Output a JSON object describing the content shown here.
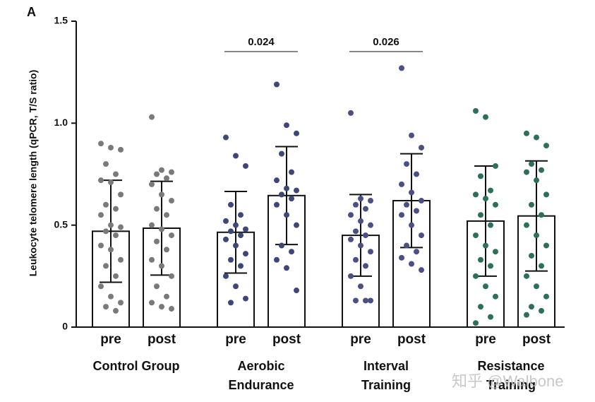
{
  "chart_data": {
    "type": "bar",
    "panel_label": "A",
    "y_label": "Leukocyte telomere length (qPCR, T/S ratio)",
    "ylim": [
      0,
      1.5
    ],
    "yticks": [
      0,
      0.5,
      {
        "value": 1,
        "label": "1.0"
      },
      1.5
    ],
    "groups": [
      {
        "name": "Control Group",
        "color": "#7a7a7a",
        "categories": [
          "pre",
          "post"
        ],
        "values": [
          0.47,
          0.485
        ],
        "errors": [
          0.25,
          0.23
        ],
        "points": [
          [
            0.9,
            0.88,
            0.87,
            0.8,
            0.75,
            0.72,
            0.71,
            0.65,
            0.6,
            0.58,
            0.55,
            0.5,
            0.49,
            0.47,
            0.45,
            0.4,
            0.38,
            0.33,
            0.3,
            0.25,
            0.2,
            0.15,
            0.12,
            0.1,
            0.08
          ],
          [
            1.03,
            0.77,
            0.76,
            0.75,
            0.73,
            0.7,
            0.65,
            0.62,
            0.58,
            0.55,
            0.5,
            0.48,
            0.45,
            0.42,
            0.38,
            0.33,
            0.3,
            0.25,
            0.2,
            0.15,
            0.12,
            0.1,
            0.09
          ]
        ]
      },
      {
        "name": "Aerobic Endurance",
        "color": "#3e4878",
        "categories": [
          "pre",
          "post"
        ],
        "values": [
          0.465,
          0.645
        ],
        "errors": [
          0.2,
          0.24
        ],
        "comparison": "0.024",
        "points": [
          [
            0.93,
            0.84,
            0.79,
            0.6,
            0.55,
            0.52,
            0.5,
            0.48,
            0.47,
            0.45,
            0.43,
            0.4,
            0.36,
            0.33,
            0.3,
            0.25,
            0.2,
            0.14,
            0.12
          ],
          [
            1.19,
            0.99,
            0.95,
            0.85,
            0.76,
            0.72,
            0.68,
            0.67,
            0.65,
            0.63,
            0.6,
            0.55,
            0.5,
            0.4,
            0.37,
            0.33,
            0.29,
            0.18
          ]
        ]
      },
      {
        "name": "Interval Training",
        "color": "#4a5082",
        "categories": [
          "pre",
          "post"
        ],
        "values": [
          0.45,
          0.62
        ],
        "errors": [
          0.2,
          0.23
        ],
        "comparison": "0.026",
        "points": [
          [
            1.05,
            0.63,
            0.62,
            0.6,
            0.58,
            0.55,
            0.52,
            0.5,
            0.47,
            0.45,
            0.43,
            0.4,
            0.37,
            0.33,
            0.3,
            0.25,
            0.2,
            0.13,
            0.13,
            0.13
          ],
          [
            1.27,
            0.94,
            0.88,
            0.8,
            0.75,
            0.7,
            0.66,
            0.62,
            0.6,
            0.57,
            0.55,
            0.5,
            0.45,
            0.4,
            0.37,
            0.34,
            0.31,
            0.28
          ]
        ]
      },
      {
        "name": "Resistance Training",
        "color": "#2d6e5c",
        "categories": [
          "pre",
          "post"
        ],
        "values": [
          0.52,
          0.545
        ],
        "errors": [
          0.27,
          0.27
        ],
        "points": [
          [
            1.06,
            1.03,
            0.79,
            0.74,
            0.67,
            0.65,
            0.63,
            0.6,
            0.55,
            0.5,
            0.45,
            0.4,
            0.37,
            0.33,
            0.3,
            0.25,
            0.2,
            0.15,
            0.1,
            0.05,
            0.02
          ],
          [
            0.95,
            0.93,
            0.89,
            0.8,
            0.77,
            0.76,
            0.72,
            0.65,
            0.6,
            0.55,
            0.5,
            0.45,
            0.4,
            0.35,
            0.3,
            0.25,
            0.2,
            0.15,
            0.1,
            0.08,
            0.06
          ]
        ]
      }
    ],
    "watermark": "知乎 @Walbone"
  }
}
